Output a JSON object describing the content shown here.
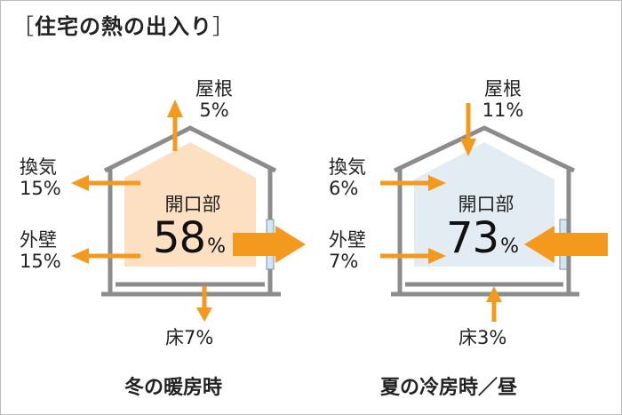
{
  "title": "住宅の熱の出入り",
  "title_open_bracket": "［",
  "title_close_bracket": "］",
  "colors": {
    "arrow": "#f39a1e",
    "house_line": "#8c8c8c",
    "winter_fill": "#fde0c2",
    "summer_fill": "#e2ecf2",
    "window": "#cfe6f5"
  },
  "winter": {
    "caption": "冬の暖房時",
    "opening_label": "開口部",
    "opening_value": "58",
    "opening_unit": "%",
    "roof": {
      "label": "屋根",
      "value": "5%"
    },
    "ventilation": {
      "label": "換気",
      "value": "15%"
    },
    "walls": {
      "label": "外壁",
      "value": "15%"
    },
    "floor": {
      "label": "床7%"
    }
  },
  "summer": {
    "caption": "夏の冷房時／昼",
    "opening_label": "開口部",
    "opening_value": "73",
    "opening_unit": "%",
    "roof": {
      "label": "屋根",
      "value": "11%"
    },
    "ventilation": {
      "label": "換気",
      "value": "6%"
    },
    "walls": {
      "label": "外壁",
      "value": "7%"
    },
    "floor": {
      "label": "床3%"
    }
  }
}
